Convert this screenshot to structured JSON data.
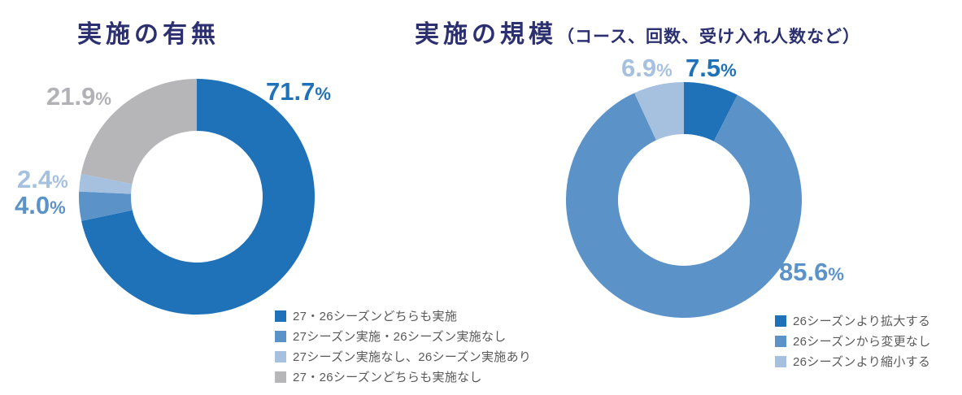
{
  "page": {
    "background": "#ffffff"
  },
  "percent_sign": "%",
  "theme": {
    "title_color": "#2c3071",
    "legend_text_color": "#595959",
    "dark_blue": "#1f72b8",
    "medium_blue": "#5b93c9",
    "light_blue": "#a6c1e0",
    "gray": "#b6b6b9"
  },
  "chart_data": [
    {
      "type": "pie",
      "subtype": "donut",
      "title": "実施の有無",
      "title_main": "実施の有無",
      "title_note": "",
      "categories": [
        "27・26シーズンどちらも実施",
        "27シーズン実施・26シーズン実施なし",
        "27シーズン実施なし、26シーズン実施あり",
        "27・26シーズンどちらも実施なし"
      ],
      "values": [
        71.7,
        4,
        2.4,
        21.9
      ],
      "value_labels": [
        "71.7",
        "4.0",
        "2.4",
        "21.9"
      ],
      "colors": [
        "#1f72b8",
        "#5b93c9",
        "#a6c1e0",
        "#b6b6b9"
      ],
      "start_angle_deg": 0,
      "direction": "clockwise",
      "donut_hole_ratio": 0.56,
      "legend_position": "bottom-right"
    },
    {
      "type": "pie",
      "subtype": "donut",
      "title": "実施の規模（コース、回数、受け入れ人数など）",
      "title_main": "実施の規模",
      "title_note": "（コース、回数、受け入れ人数など）",
      "categories": [
        "26シーズンより拡大する",
        "26シーズンから変更なし",
        "26シーズンより縮小する"
      ],
      "values": [
        7.5,
        85.6,
        6.9
      ],
      "value_labels": [
        "7.5",
        "85.6",
        "6.9"
      ],
      "colors": [
        "#1f72b8",
        "#5b93c9",
        "#a6c1e0"
      ],
      "start_angle_deg": 0,
      "direction": "clockwise",
      "donut_hole_ratio": 0.56,
      "legend_position": "bottom-right"
    }
  ]
}
